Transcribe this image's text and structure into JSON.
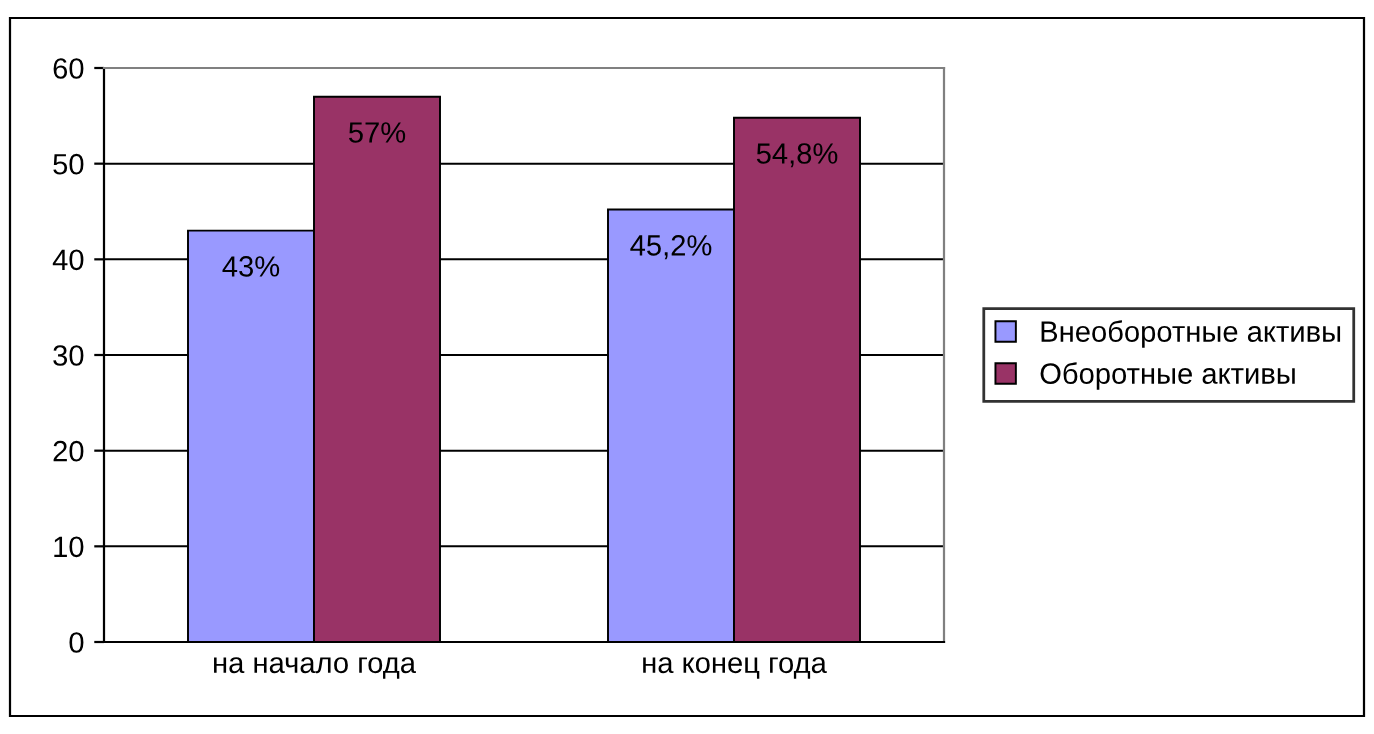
{
  "chart_data": {
    "type": "bar",
    "categories": [
      "на начало года",
      "на конец года"
    ],
    "series": [
      {
        "name": "Внеоборотные активы",
        "color": "#9999ff",
        "values": [
          43,
          45.2
        ],
        "value_labels": [
          "43%",
          "45,2%"
        ]
      },
      {
        "name": "Оборотные активы",
        "color": "#993366",
        "values": [
          57,
          54.8
        ],
        "value_labels": [
          "57%",
          "54,8%"
        ]
      }
    ],
    "ylim": [
      0,
      60
    ],
    "yticks": [
      0,
      10,
      20,
      30,
      40,
      50,
      60
    ],
    "grid": "y",
    "legend": "right"
  }
}
